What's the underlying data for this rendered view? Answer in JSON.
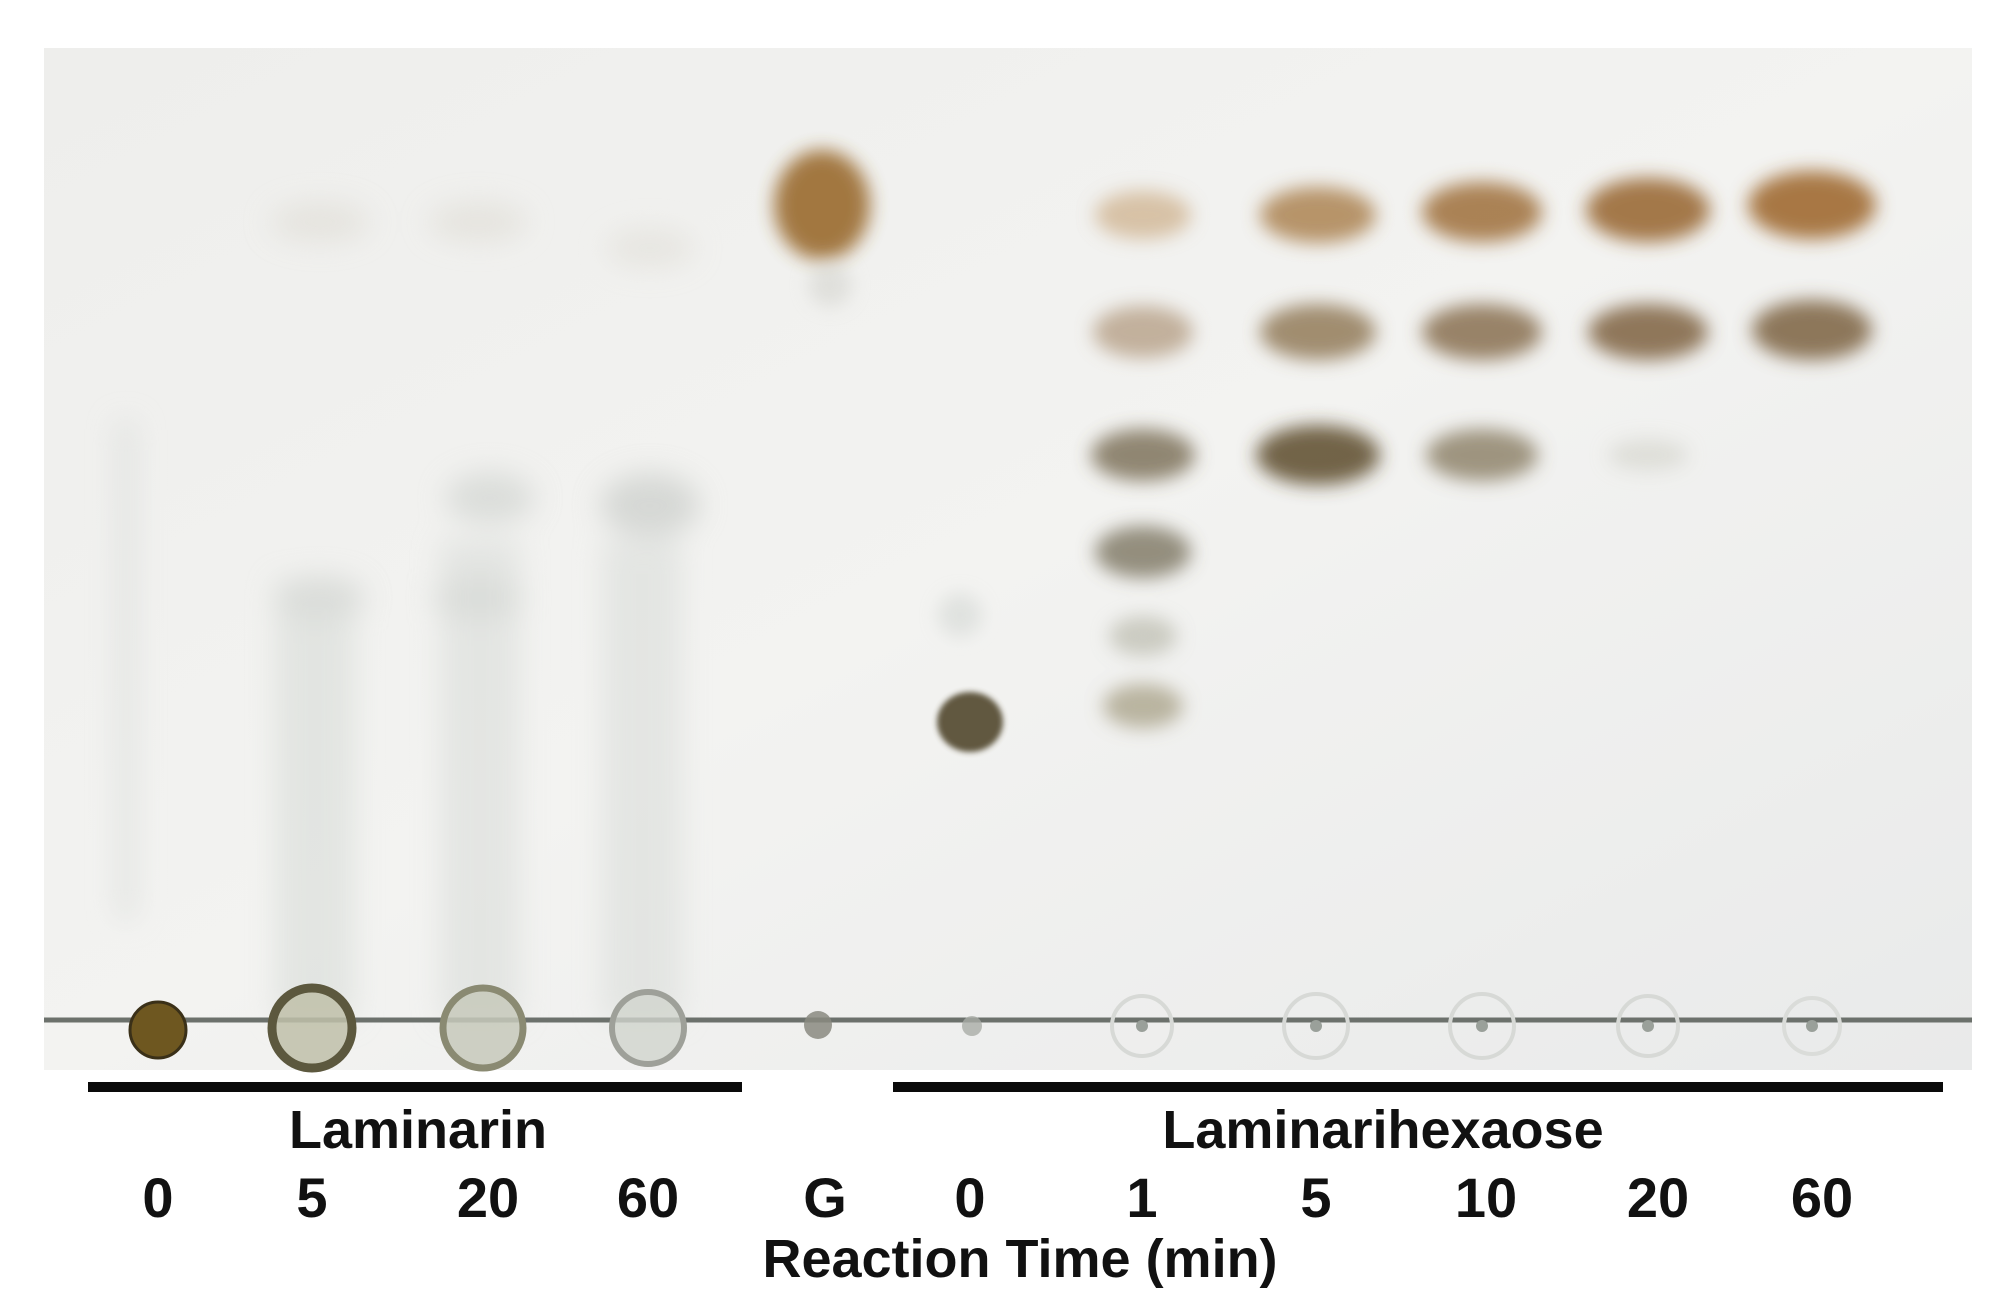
{
  "figure": {
    "groups": [
      {
        "label": "Laminarin",
        "lanes": [
          "0",
          "5",
          "20",
          "60"
        ]
      },
      {
        "label": "Laminarihexaose",
        "lanes": [
          "0",
          "1",
          "5",
          "10",
          "20",
          "60"
        ]
      }
    ],
    "standard_lane_label": "G",
    "axis_label": "Reaction Time (min)"
  }
}
